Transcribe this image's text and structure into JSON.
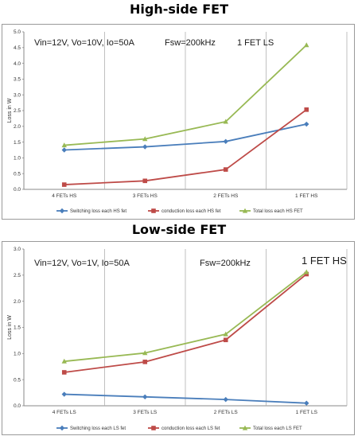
{
  "page": {
    "top_heading": "High-side FET",
    "bottom_heading": "Low-side FET"
  },
  "colors": {
    "switching": "#4a7ebb",
    "conduction": "#be4b48",
    "total": "#98b954",
    "grid": "#b0b0b0"
  },
  "chart_data": [
    {
      "type": "line",
      "title": "High-side FET",
      "categories": [
        "4 FETs HS",
        "3 FETs HS",
        "2 FETs HS",
        "1 FET HS"
      ],
      "ylabel": "Loss in W",
      "ylim": [
        0,
        5
      ],
      "yticks": [
        "0.0",
        "0.5",
        "1.0",
        "1.5",
        "2.0",
        "2.5",
        "3.0",
        "3.5",
        "4.0",
        "4.5",
        "5.0"
      ],
      "grid": "vertical",
      "annotations": {
        "conditions": "Vin=12V, Vo=10V, Io=50A",
        "fsw": "Fsw=200kHz",
        "fet": "1 FET LS"
      },
      "legend_position": "bottom",
      "series": [
        {
          "name": "Switching loss each HS fet",
          "marker": "diamond",
          "values": [
            1.25,
            1.35,
            1.52,
            2.07
          ]
        },
        {
          "name": "conduction loss each HS fet",
          "marker": "square",
          "values": [
            0.15,
            0.27,
            0.63,
            2.53
          ]
        },
        {
          "name": "Total loss each HS FET",
          "marker": "triangle",
          "values": [
            1.4,
            1.6,
            2.15,
            4.58
          ]
        }
      ]
    },
    {
      "type": "line",
      "title": "Low-side FET",
      "categories": [
        "4 FETs LS",
        "3 FETs LS",
        "2 FETs LS",
        "1 FET LS"
      ],
      "ylabel": "Loss in W",
      "ylim": [
        0,
        3
      ],
      "yticks": [
        "0.0",
        "0.5",
        "1.0",
        "1.5",
        "2.0",
        "2.5",
        "3.0"
      ],
      "grid": "vertical",
      "annotations": {
        "conditions": "Vin=12V, Vo=1V, Io=50A",
        "fsw": "Fsw=200kHz",
        "fet": "1 FET HS"
      },
      "legend_position": "bottom",
      "series": [
        {
          "name": "Switching loss each LS fet",
          "marker": "diamond",
          "values": [
            0.22,
            0.17,
            0.12,
            0.05
          ]
        },
        {
          "name": "conduction loss each LS fet",
          "marker": "square",
          "values": [
            0.64,
            0.84,
            1.26,
            2.52
          ]
        },
        {
          "name": "Total loss each LS FET",
          "marker": "triangle",
          "values": [
            0.85,
            1.01,
            1.37,
            2.56
          ]
        }
      ]
    }
  ]
}
